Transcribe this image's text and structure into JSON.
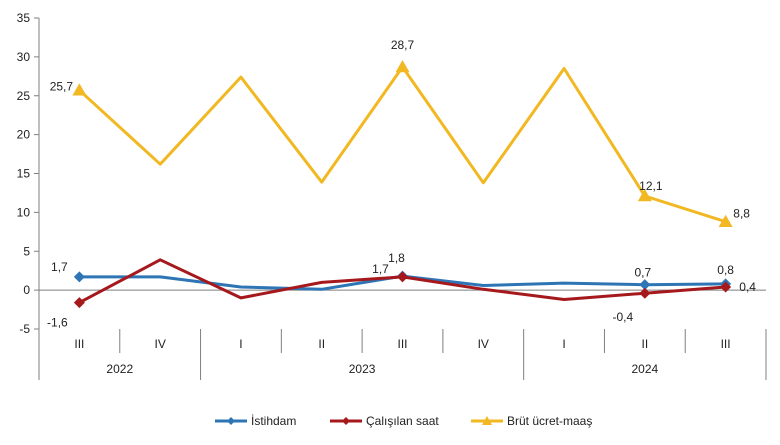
{
  "chart_data": {
    "type": "line",
    "quarters": [
      "III",
      "IV",
      "I",
      "II",
      "III",
      "IV",
      "I",
      "II",
      "III"
    ],
    "years": [
      {
        "label": "2022",
        "from": 0,
        "to": 1
      },
      {
        "label": "2023",
        "from": 2,
        "to": 5
      },
      {
        "label": "2024",
        "from": 6,
        "to": 8
      }
    ],
    "ylim": [
      -5,
      35
    ],
    "yticks": [
      -5,
      0,
      5,
      10,
      15,
      20,
      25,
      30,
      35
    ],
    "grid": false,
    "legend_position": "bottom",
    "series": [
      {
        "name": "İstihdam",
        "color": "#2E75B6",
        "marker": "diamond",
        "values": [
          1.7,
          1.7,
          0.4,
          0.1,
          1.8,
          0.6,
          0.9,
          0.7,
          0.8
        ],
        "labels": [
          {
            "i": 0,
            "text": "1,7"
          },
          {
            "i": 4,
            "text": "1,8"
          },
          {
            "i": 7,
            "text": "0,7"
          },
          {
            "i": 8,
            "text": "0,8"
          }
        ]
      },
      {
        "name": "Çalışılan saat",
        "color": "#A5191D",
        "marker": "diamond",
        "values": [
          -1.6,
          3.9,
          -1.0,
          1.0,
          1.7,
          0.1,
          -1.2,
          -0.4,
          0.4
        ],
        "labels": [
          {
            "i": 0,
            "text": "-1,6"
          },
          {
            "i": 4,
            "text": "1,7"
          },
          {
            "i": 7,
            "text": "-0,4"
          },
          {
            "i": 8,
            "text": "0,4"
          }
        ]
      },
      {
        "name": "Brüt ücret-maaş",
        "color": "#F2B822",
        "marker": "triangle",
        "values": [
          25.7,
          16.2,
          27.4,
          13.9,
          28.7,
          13.8,
          28.5,
          12.1,
          8.8
        ],
        "labels": [
          {
            "i": 0,
            "text": "25,7"
          },
          {
            "i": 4,
            "text": "28,7"
          },
          {
            "i": 7,
            "text": "12,1"
          },
          {
            "i": 8,
            "text": "8,8"
          }
        ]
      }
    ]
  }
}
